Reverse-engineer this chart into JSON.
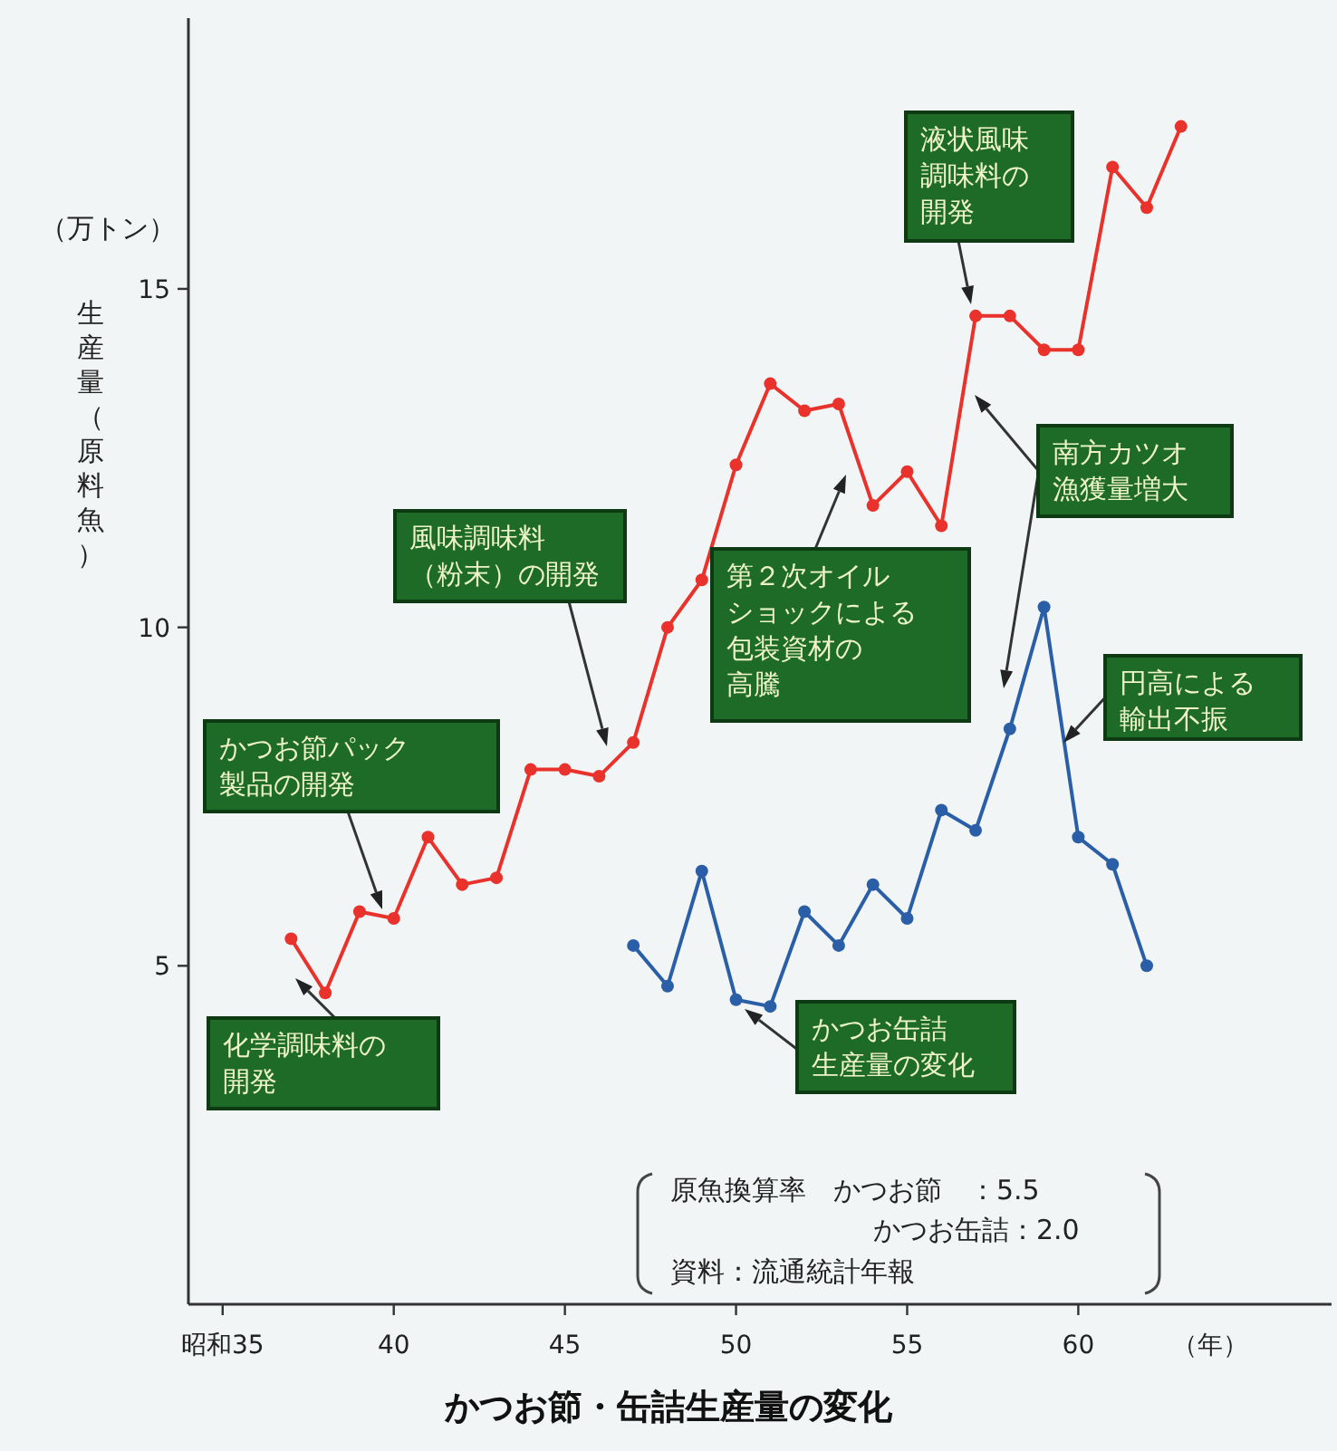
{
  "chart_data": {
    "type": "line",
    "title": "かつお節・缶詰生産量の変化",
    "ylabel": "生産量（原料魚）",
    "xlabel": "（年）",
    "xlim": [
      34,
      67.4
    ],
    "ylim": [
      0,
      19
    ],
    "xticks": [
      {
        "value": 35,
        "label": "昭和35"
      },
      40,
      45,
      50,
      55,
      60
    ],
    "yticks": [
      5,
      10,
      15
    ],
    "marker": "circle",
    "line_style": "solid",
    "grid": false,
    "series": [
      {
        "color": "#e8322b",
        "x": [
          37,
          38,
          39,
          40,
          41,
          42,
          43,
          44,
          45,
          46,
          47,
          48,
          49,
          50,
          51,
          52,
          53,
          54,
          55,
          56,
          57,
          58,
          59,
          60,
          61,
          62,
          63
        ],
        "values": [
          5.4,
          4.6,
          5.8,
          5.7,
          6.9,
          6.2,
          6.3,
          7.9,
          7.9,
          7.8,
          8.3,
          10.0,
          10.7,
          12.4,
          13.6,
          13.2,
          13.3,
          11.8,
          12.3,
          11.5,
          14.6,
          14.6,
          14.1,
          14.1,
          16.8,
          16.2,
          17.4
        ]
      },
      {
        "color": "#2a5fa8",
        "x": [
          47,
          48,
          49,
          50,
          51,
          52,
          53,
          54,
          55,
          56,
          57,
          58,
          59,
          60,
          61,
          62
        ],
        "values": [
          5.3,
          4.7,
          6.4,
          4.5,
          4.4,
          5.8,
          5.3,
          6.2,
          5.7,
          7.3,
          7.0,
          8.5,
          10.3,
          6.9,
          6.5,
          5.0
        ]
      }
    ],
    "annotations": [
      "化学調味料の開発",
      "かつお節パック製品の開発",
      "風味調味料（粉末）の開発",
      "第２次オイルショックによる包装資材の高騰",
      "液状風味調味料の開発",
      "南方カツオ漁獲量増大",
      "円高による輸出不振",
      "かつお缶詰生産量の変化",
      "（万トン）",
      "原魚換算率　かつお節　：5.5",
      "かつお缶詰：2.0",
      "資料：流通統計年報"
    ]
  }
}
